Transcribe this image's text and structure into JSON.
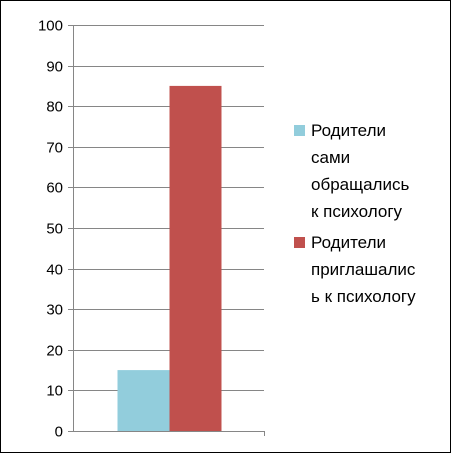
{
  "colors": {
    "series1": "#92cddc",
    "series2": "#c0504d",
    "grid": "#868686",
    "axis": "#868686"
  },
  "chart_data": {
    "type": "bar",
    "categories": [
      ""
    ],
    "series": [
      {
        "name": "Родители сами обращались к психологу",
        "values": [
          15
        ],
        "color": "#92cddc",
        "legend_lines": [
          "Родители",
          "сами",
          "обращались",
          "к психологу"
        ]
      },
      {
        "name": "Родители приглашались к психологу",
        "values": [
          85
        ],
        "color": "#c0504d",
        "legend_lines": [
          "Родители",
          "приглашалис",
          "ь к психологу"
        ]
      }
    ],
    "ylim": [
      0,
      100
    ],
    "yticks": [
      0,
      10,
      20,
      30,
      40,
      50,
      60,
      70,
      80,
      90,
      100
    ],
    "grid": true,
    "legend_position": "right",
    "title": "",
    "xlabel": "",
    "ylabel": ""
  }
}
